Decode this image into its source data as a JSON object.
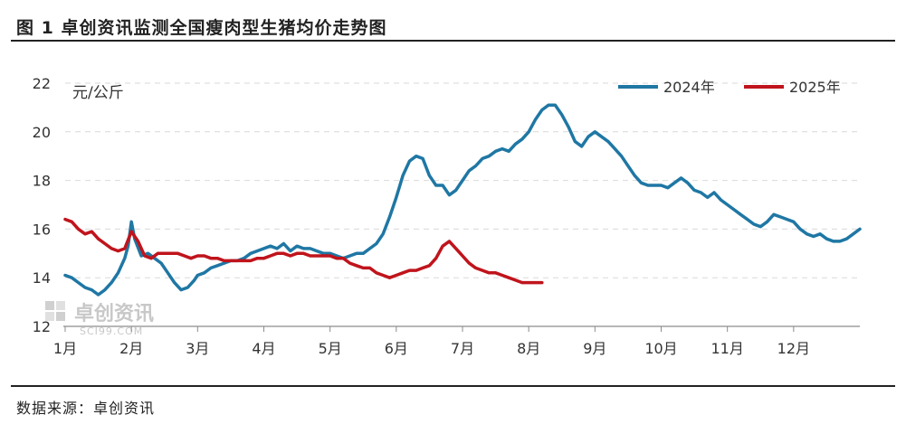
{
  "header": {
    "title": "图 1 卓创资讯监测全国瘦肉型生猪均价走势图"
  },
  "footer": {
    "source": "数据来源：卓创资讯"
  },
  "watermark": {
    "name_cn": "卓创资讯",
    "name_en": "SCI99.COM"
  },
  "colors": {
    "series_2024": "#1f77a4",
    "series_2025": "#c0141c",
    "grid": "#d9d9d9",
    "axis": "#8c8c8c"
  },
  "chart_data": {
    "type": "line",
    "ylabel": "元/公斤",
    "ylim": [
      12,
      22
    ],
    "yticks": [
      12,
      14,
      16,
      18,
      20,
      22
    ],
    "xlim": [
      0,
      12
    ],
    "x_ticks": [
      {
        "label": "1月",
        "x": 0
      },
      {
        "label": "2月",
        "x": 1
      },
      {
        "label": "3月",
        "x": 2
      },
      {
        "label": "4月",
        "x": 3
      },
      {
        "label": "5月",
        "x": 4
      },
      {
        "label": "6月",
        "x": 5
      },
      {
        "label": "7月",
        "x": 6
      },
      {
        "label": "8月",
        "x": 7
      },
      {
        "label": "9月",
        "x": 8
      },
      {
        "label": "10月",
        "x": 9
      },
      {
        "label": "11月",
        "x": 10
      },
      {
        "label": "12月",
        "x": 11
      }
    ],
    "grid": "horizontal-dashed",
    "legend_position": "top-right",
    "series": [
      {
        "name": "2024年",
        "x": [
          0.0,
          0.1,
          0.2,
          0.3,
          0.4,
          0.5,
          0.6,
          0.7,
          0.8,
          0.9,
          0.95,
          1.0,
          1.05,
          1.15,
          1.25,
          1.35,
          1.45,
          1.55,
          1.65,
          1.75,
          1.85,
          1.95,
          2.0,
          2.1,
          2.2,
          2.3,
          2.4,
          2.5,
          2.6,
          2.7,
          2.8,
          2.9,
          3.0,
          3.1,
          3.2,
          3.3,
          3.4,
          3.5,
          3.6,
          3.7,
          3.8,
          3.9,
          4.0,
          4.1,
          4.2,
          4.3,
          4.4,
          4.5,
          4.6,
          4.7,
          4.8,
          4.9,
          5.0,
          5.1,
          5.2,
          5.3,
          5.4,
          5.5,
          5.6,
          5.7,
          5.8,
          5.9,
          6.0,
          6.1,
          6.2,
          6.3,
          6.4,
          6.5,
          6.6,
          6.7,
          6.8,
          6.9,
          7.0,
          7.1,
          7.2,
          7.3,
          7.4,
          7.5,
          7.6,
          7.7,
          7.8,
          7.9,
          8.0,
          8.1,
          8.2,
          8.3,
          8.4,
          8.5,
          8.6,
          8.7,
          8.8,
          8.9,
          9.0,
          9.1,
          9.2,
          9.3,
          9.4,
          9.5,
          9.6,
          9.7,
          9.8,
          9.9,
          10.0,
          10.1,
          10.2,
          10.3,
          10.4,
          10.5,
          10.6,
          10.7,
          10.8,
          10.9,
          11.0,
          11.1,
          11.2,
          11.3,
          11.4,
          11.5,
          11.6,
          11.7,
          11.8,
          11.9,
          12.0
        ],
        "values": [
          14.1,
          14.0,
          13.8,
          13.6,
          13.5,
          13.3,
          13.5,
          13.8,
          14.2,
          14.8,
          15.3,
          16.3,
          15.6,
          14.9,
          15.0,
          14.8,
          14.6,
          14.2,
          13.8,
          13.5,
          13.6,
          13.9,
          14.1,
          14.2,
          14.4,
          14.5,
          14.6,
          14.7,
          14.7,
          14.8,
          15.0,
          15.1,
          15.2,
          15.3,
          15.2,
          15.4,
          15.1,
          15.3,
          15.2,
          15.2,
          15.1,
          15.0,
          15.0,
          14.9,
          14.8,
          14.9,
          15.0,
          15.0,
          15.2,
          15.4,
          15.8,
          16.5,
          17.3,
          18.2,
          18.8,
          19.0,
          18.9,
          18.2,
          17.8,
          17.8,
          17.4,
          17.6,
          18.0,
          18.4,
          18.6,
          18.9,
          19.0,
          19.2,
          19.3,
          19.2,
          19.5,
          19.7,
          20.0,
          20.5,
          20.9,
          21.1,
          21.1,
          20.7,
          20.2,
          19.6,
          19.4,
          19.8,
          20.0,
          19.8,
          19.6,
          19.3,
          19.0,
          18.6,
          18.2,
          17.9,
          17.8,
          17.8,
          17.8,
          17.7,
          17.9,
          18.1,
          17.9,
          17.6,
          17.5,
          17.3,
          17.5,
          17.2,
          17.0,
          16.8,
          16.6,
          16.4,
          16.2,
          16.1,
          16.3,
          16.6,
          16.5,
          16.4,
          16.3,
          16.0,
          15.8,
          15.7,
          15.8,
          15.6,
          15.5,
          15.5,
          15.6,
          15.8,
          16.0
        ]
      },
      {
        "name": "2025年",
        "x": [
          0.0,
          0.1,
          0.2,
          0.3,
          0.4,
          0.5,
          0.6,
          0.7,
          0.8,
          0.9,
          1.0,
          1.1,
          1.2,
          1.3,
          1.4,
          1.5,
          1.6,
          1.7,
          1.8,
          1.9,
          2.0,
          2.1,
          2.2,
          2.3,
          2.4,
          2.5,
          2.6,
          2.7,
          2.8,
          2.9,
          3.0,
          3.1,
          3.2,
          3.3,
          3.4,
          3.5,
          3.6,
          3.7,
          3.8,
          3.9,
          4.0,
          4.1,
          4.2,
          4.3,
          4.4,
          4.5,
          4.6,
          4.7,
          4.8,
          4.9,
          5.0,
          5.1,
          5.2,
          5.3,
          5.4,
          5.5,
          5.6,
          5.7,
          5.8,
          5.9,
          6.0,
          6.1,
          6.2,
          6.3,
          6.4,
          6.5,
          6.6,
          6.7,
          6.8,
          6.9,
          7.0,
          7.1,
          7.2
        ],
        "values": [
          16.4,
          16.3,
          16.0,
          15.8,
          15.9,
          15.6,
          15.4,
          15.2,
          15.1,
          15.2,
          15.9,
          15.5,
          14.9,
          14.8,
          15.0,
          15.0,
          15.0,
          15.0,
          14.9,
          14.8,
          14.9,
          14.9,
          14.8,
          14.8,
          14.7,
          14.7,
          14.7,
          14.7,
          14.7,
          14.8,
          14.8,
          14.9,
          15.0,
          15.0,
          14.9,
          15.0,
          15.0,
          14.9,
          14.9,
          14.9,
          14.9,
          14.8,
          14.8,
          14.6,
          14.5,
          14.4,
          14.4,
          14.2,
          14.1,
          14.0,
          14.1,
          14.2,
          14.3,
          14.3,
          14.4,
          14.5,
          14.8,
          15.3,
          15.5,
          15.2,
          14.9,
          14.6,
          14.4,
          14.3,
          14.2,
          14.2,
          14.1,
          14.0,
          13.9,
          13.8,
          13.8,
          13.8,
          13.8
        ]
      }
    ]
  }
}
